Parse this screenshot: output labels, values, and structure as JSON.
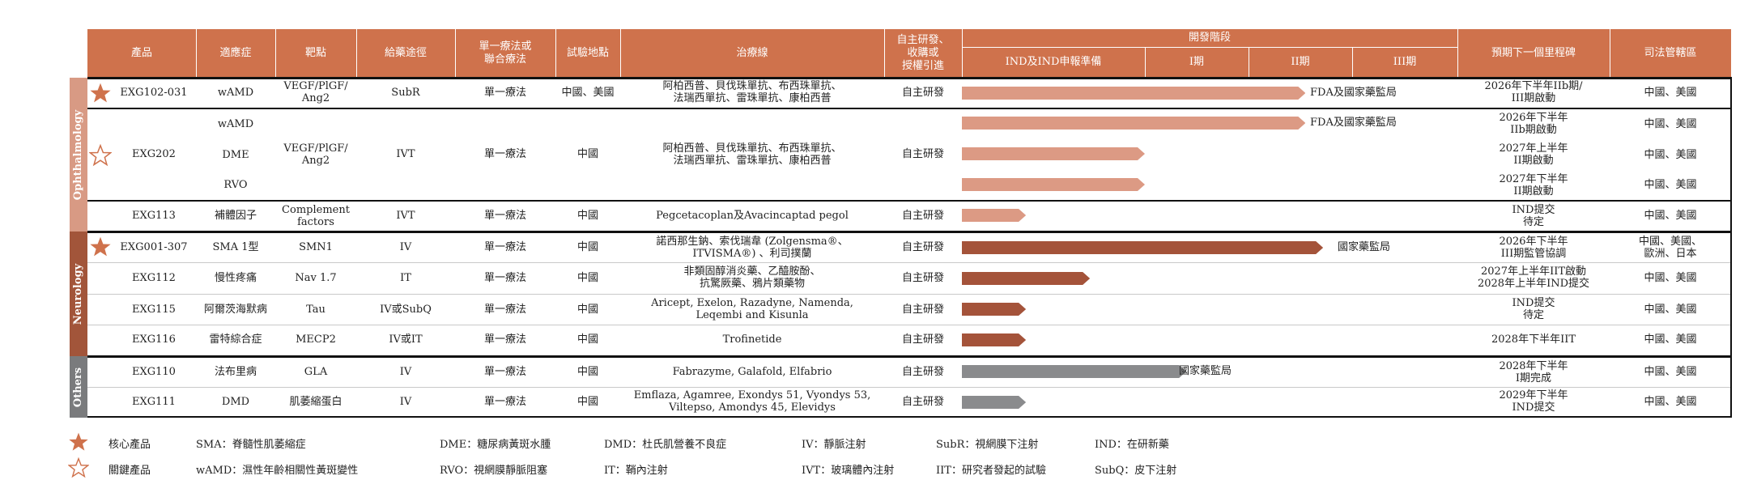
{
  "header": {
    "product": "產品",
    "indication": "適應症",
    "target": "靶點",
    "route": "給藥途徑",
    "mono": "單一療法或\n聯合療法",
    "site": "試驗地點",
    "therapy_line": "治療線",
    "source": "自主研發、\n收購或\n授權引進",
    "dev_stage": "開發階段",
    "stage_ind": "IND及IND申報準備",
    "stage_1": "I期",
    "stage_2": "II期",
    "stage_3": "III期",
    "milestone": "預期下一個里程碑",
    "jurisdiction": "司法管轄區"
  },
  "groups": {
    "ophthalmology": "Ophthalmology",
    "neurology": "Neurology",
    "others": "Others"
  },
  "colors": {
    "header": "#cf724c",
    "ophthalmology": "#d89a84",
    "neurology": "#a2553a",
    "others": "#7a7b7d",
    "bar_ophthalmology": "#dc9a84",
    "bar_neurology": "#a4533a",
    "bar_others": "#8a8b8d",
    "star": "#cf724c"
  },
  "rows": {
    "exg102": {
      "product": "EXG102-031",
      "indication": "wAMD",
      "target": "VEGF/PlGF/\nAng2",
      "route": "SubR",
      "mono": "單一療法",
      "site": "中國、美國",
      "therapy_line": "阿柏西普、貝伐珠單抗、布西珠單抗、\n法瑞西單抗、雷珠單抗、康柏西普",
      "source": "自主研發",
      "bar_label": "FDA及國家藥監局",
      "milestone": "2026年下半年IIb期/\nIII期啟動",
      "jurisdiction": "中國、美國",
      "progress_stage": 2.55
    },
    "exg202": {
      "product": "EXG202",
      "target": "VEGF/PlGF/\nAng2",
      "route": "IVT",
      "mono": "單一療法",
      "site": "中國",
      "therapy_line": "阿柏西普、貝伐珠單抗、布西珠單抗、\n法瑞西單抗、雷珠單抗、康柏西普",
      "source": "自主研發",
      "sub": [
        {
          "indication": "wAMD",
          "bar_label": "FDA及國家藥監局",
          "milestone": "2026年下半年\nIIb期啟動",
          "jurisdiction": "中國、美國",
          "progress_stage": 2.55
        },
        {
          "indication": "DME",
          "bar_label": "",
          "milestone": "2027年上半年\nII期啟動",
          "jurisdiction": "中國、美國",
          "progress_stage": 1.0
        },
        {
          "indication": "RVO",
          "bar_label": "",
          "milestone": "2027年下半年\nII期啟動",
          "jurisdiction": "中國、美國",
          "progress_stage": 1.0
        }
      ]
    },
    "exg113": {
      "product": "EXG113",
      "indication": "補體因子",
      "target": "Complement\nfactors",
      "route": "IVT",
      "mono": "單一療法",
      "site": "中國",
      "therapy_line": "Pegcetacoplan及Avacincaptad pegol",
      "source": "自主研發",
      "milestone": "IND提交\n待定",
      "jurisdiction": "中國、美國",
      "progress_stage": 0.35
    },
    "exg001": {
      "product": "EXG001-307",
      "indication": "SMA 1型",
      "target": "SMN1",
      "route": "IV",
      "mono": "單一療法",
      "site": "中國",
      "therapy_line": "諾西那生鈉、索伐瑞韋 (Zolgensma®、\nITVISMA®) 、利司撲蘭",
      "source": "自主研發",
      "bar_label": "國家藥監局",
      "milestone": "2026年下半年\nIII期監管協調",
      "jurisdiction": "中國、美國、\n歐洲、日本",
      "progress_stage": 2.72
    },
    "exg112": {
      "product": "EXG112",
      "indication": "慢性疼痛",
      "target": "Nav 1.7",
      "route": "IT",
      "mono": "單一療法",
      "site": "中國",
      "therapy_line": "非類固醇消炎藥、乙醯胺酚、\n抗驚厥藥、鴉片類藥物",
      "source": "自主研發",
      "milestone": "2027年上半年IIT啟動\n2028年上半年IND提交",
      "jurisdiction": "中國、美國",
      "progress_stage": 0.7
    },
    "exg115": {
      "product": "EXG115",
      "indication": "阿爾茨海默病",
      "target": "Tau",
      "route": "IV或SubQ",
      "mono": "單一療法",
      "site": "中國",
      "therapy_line": "Aricept, Exelon, Razadyne, Namenda,\nLeqembi and Kisunla",
      "source": "自主研發",
      "milestone": "IND提交\n待定",
      "jurisdiction": "中國、美國",
      "progress_stage": 0.35
    },
    "exg116": {
      "product": "EXG116",
      "indication": "雷特綜合症",
      "target": "MECP2",
      "route": "IV或IT",
      "mono": "單一療法",
      "site": "中國",
      "therapy_line": "Trofinetide",
      "source": "自主研發",
      "milestone": "2028年下半年IIT",
      "jurisdiction": "中國、美國",
      "progress_stage": 0.35
    },
    "exg110": {
      "product": "EXG110",
      "indication": "法布里病",
      "target": "GLA",
      "route": "IV",
      "mono": "單一療法",
      "site": "中國",
      "therapy_line": "Fabrazyme, Galafold, Elfabrio",
      "source": "自主研發",
      "bar_label": "國家藥監局",
      "milestone": "2028年下半年\nI期完成",
      "jurisdiction": "中國、美國",
      "progress_stage": 1.4
    },
    "exg111": {
      "product": "EXG111",
      "indication": "DMD",
      "target": "肌萎縮蛋白",
      "route": "IV",
      "mono": "單一療法",
      "site": "中國",
      "therapy_line": "Emflaza, Agamree, Exondys 51, Vyondys 53,\nViltepso, Amondys 45, Elevidys",
      "source": "自主研發",
      "milestone": "2029年下半年\nIND提交",
      "jurisdiction": "中國、美國",
      "progress_stage": 0.35
    }
  },
  "legend": {
    "core": "核心產品",
    "key": "關鍵產品",
    "sma": "SMA：脊髓性肌萎縮症",
    "wamd": "wAMD：濕性年齡相關性黃斑變性",
    "dme": "DME：糖尿病黃斑水腫",
    "rvo": "RVO：視網膜靜脈阻塞",
    "dmd": "DMD：杜氏肌營養不良症",
    "it": "IT：鞘內注射",
    "iv": "IV：靜脈注射",
    "ivt": "IVT：玻璃體內注射",
    "subr": "SubR：視網膜下注射",
    "iit": "IIT：研究者發起的試驗",
    "ind": "IND：在研新藥",
    "subq": "SubQ：皮下注射"
  }
}
